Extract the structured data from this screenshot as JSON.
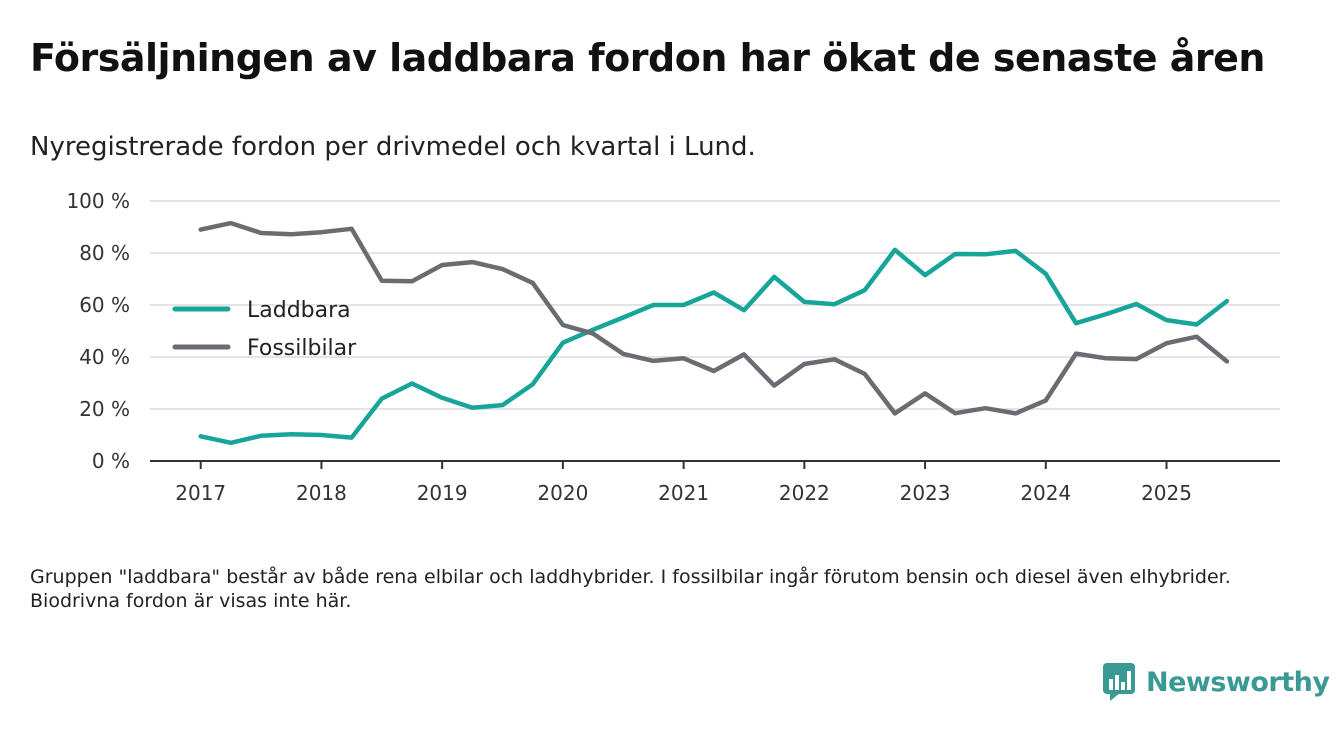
{
  "title": "Försäljningen av laddbara fordon har ökat de senaste åren",
  "subtitle": "Nyregistrerade fordon per drivmedel och kvartal i Lund.",
  "footnote": "Gruppen \"laddbara\" består av både rena elbilar och laddhybrider. I fossilbilar ingår förutom bensin och diesel även elhybrider. Biodrivna fordon är visas inte här.",
  "brand": {
    "name": "Newsworthy",
    "color": "#3a9a93"
  },
  "chart_data": {
    "type": "line",
    "title": "Nyregistrerade fordon per drivmedel och kvartal i Lund.",
    "xlabel": "",
    "ylabel": "",
    "ylim": [
      0,
      100
    ],
    "y_ticks": [
      0,
      20,
      40,
      60,
      80,
      100
    ],
    "y_tick_labels": [
      "0 %",
      "20 %",
      "40 %",
      "60 %",
      "80 %",
      "100 %"
    ],
    "x_tick_labels": [
      "2017",
      "2018",
      "2019",
      "2020",
      "2021",
      "2022",
      "2023",
      "2024",
      "2025"
    ],
    "x_start_year": 2017,
    "x_end_year": 2025.5,
    "x_range": [
      2016.58,
      2025.94
    ],
    "grid": true,
    "legend_placement": "left",
    "series": [
      {
        "name": "Laddbara",
        "color": "#17a59a",
        "values": [
          9.5,
          7,
          9.7,
          10.3,
          10,
          9,
          24,
          29.8,
          24.3,
          20.5,
          21.5,
          29.5,
          45.5,
          50.5,
          55.2,
          60,
          60,
          64.8,
          58,
          70.8,
          61.2,
          60.3,
          65.7,
          81.2,
          71.5,
          79.6,
          79.5,
          80.8,
          72,
          53,
          56.5,
          60.4,
          54.2,
          52.5,
          61.5
        ]
      },
      {
        "name": "Fossilbilar",
        "color": "#6b6b72",
        "values": [
          89,
          91.5,
          87.7,
          87.2,
          88,
          89.3,
          69.3,
          69.1,
          75.4,
          76.5,
          73.8,
          68.5,
          52.3,
          49,
          41.2,
          38.5,
          39.5,
          34.6,
          41,
          29,
          37.3,
          39.1,
          33.5,
          18.3,
          26,
          18.4,
          20.3,
          18.3,
          23.3,
          41.3,
          39.5,
          39.2,
          45.3,
          47.8,
          38.3
        ]
      }
    ]
  }
}
